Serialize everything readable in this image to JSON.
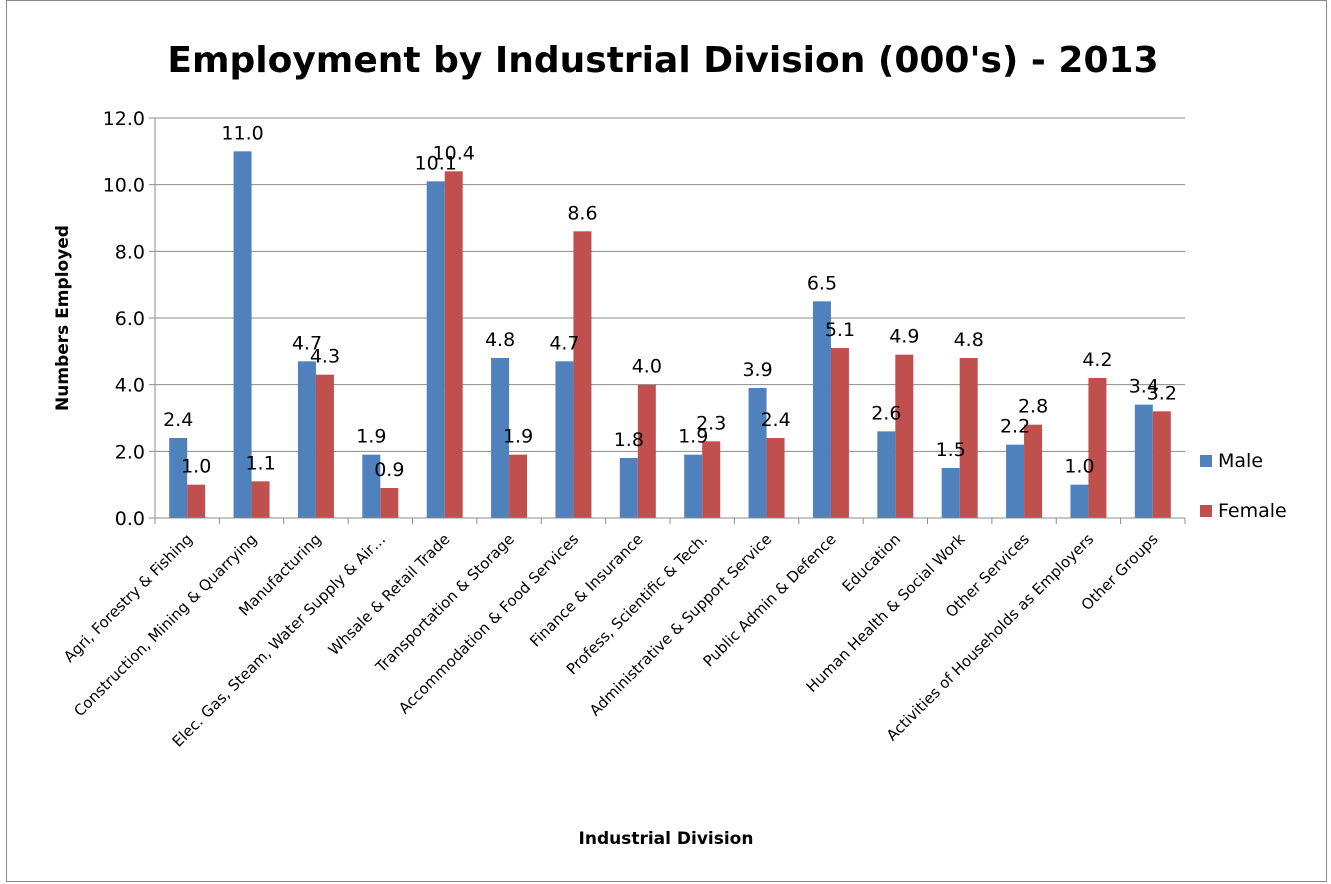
{
  "chart_data": {
    "type": "bar",
    "title": "Employment by Industrial Division (000's) - 2013",
    "xlabel": "Industrial Division",
    "ylabel": "Numbers Employed",
    "ylim": [
      0,
      12
    ],
    "yticks": [
      "0.0",
      "2.0",
      "4.0",
      "6.0",
      "8.0",
      "10.0",
      "12.0"
    ],
    "grid": true,
    "legend_position": "right",
    "categories": [
      "Agri, Forestry & Fishing",
      "Construction, Mining & Quarrying",
      "Manufacturing",
      "Elec. Gas, Steam, Water Supply & Air…",
      "Whsale & Retail Trade",
      "Transportation & Storage",
      "Accommodation & Food Services",
      "Finance & Insurance",
      "Profess, Scientific & Tech.",
      "Administrative & Support Service",
      "Public Admin & Defence",
      "Education",
      "Human Health & Social Work",
      "Other Services",
      "Activities of Households as Employers",
      "Other Groups"
    ],
    "series": [
      {
        "name": "Male",
        "color": "#4F81BD",
        "values": [
          2.4,
          11.0,
          4.7,
          1.9,
          10.1,
          4.8,
          4.7,
          1.8,
          1.9,
          3.9,
          6.5,
          2.6,
          1.5,
          2.2,
          1.0,
          3.4
        ]
      },
      {
        "name": "Female",
        "color": "#C0504D",
        "values": [
          1.0,
          1.1,
          4.3,
          0.9,
          10.4,
          1.9,
          8.6,
          4.0,
          2.3,
          2.4,
          5.1,
          4.9,
          4.8,
          2.8,
          4.2,
          3.2
        ]
      }
    ]
  }
}
